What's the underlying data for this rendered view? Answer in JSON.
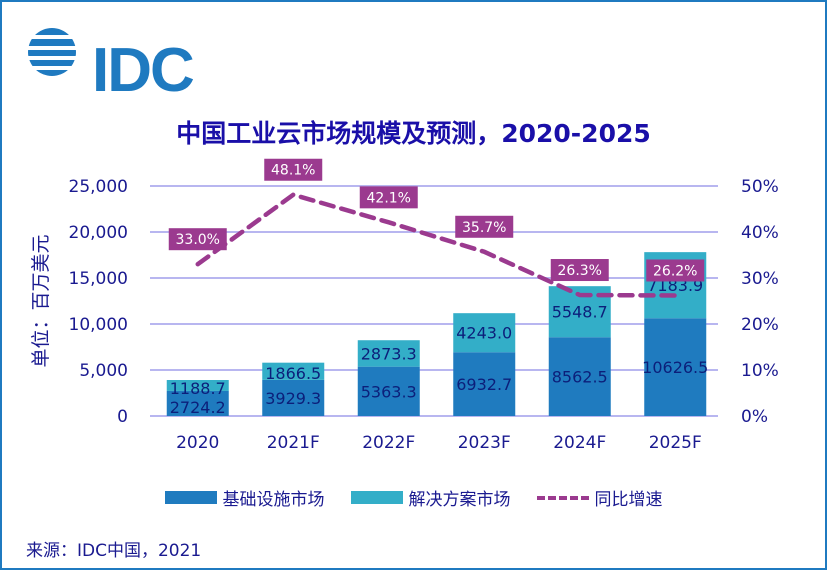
{
  "logo": {
    "text": "IDC"
  },
  "chart_data": {
    "type": "bar+line",
    "title": "中国工业云市场规模及预测，2020-2025",
    "categories": [
      "2020",
      "2021F",
      "2022F",
      "2023F",
      "2024F",
      "2025F"
    ],
    "ylabel": "单位：百万美元",
    "ylim": [
      0,
      25000
    ],
    "yticks": [
      "0",
      "5,000",
      "10,000",
      "15,000",
      "20,000",
      "25,000"
    ],
    "y2lim": [
      0,
      50
    ],
    "y2ticks": [
      "0%",
      "10%",
      "20%",
      "30%",
      "40%",
      "50%"
    ],
    "grid": true,
    "legend_position": "bottom",
    "series": [
      {
        "name": "基础设施市场",
        "kind": "stacked-bar",
        "color": "#1f7bbf",
        "values": [
          2724.2,
          3929.3,
          5363.3,
          6932.7,
          8562.5,
          10626.5
        ],
        "labels": [
          "2724.2",
          "3929.3",
          "5363.3",
          "6932.7",
          "8562.5",
          "10626.5"
        ]
      },
      {
        "name": "解决方案市场",
        "kind": "stacked-bar",
        "color": "#33aec8",
        "values": [
          1188.7,
          1866.5,
          2873.3,
          4243.0,
          5548.7,
          7183.9
        ],
        "labels": [
          "1188.7",
          "1866.5",
          "2873.3",
          "4243.0",
          "5548.7",
          "7183.9"
        ]
      },
      {
        "name": "同比增速",
        "kind": "dashed-line",
        "axis": "right",
        "color": "#9b3a8f",
        "values": [
          33.0,
          48.1,
          42.1,
          35.7,
          26.3,
          26.2
        ],
        "labels": [
          "33.0%",
          "48.1%",
          "42.1%",
          "35.7%",
          "26.3%",
          "26.2%"
        ]
      }
    ]
  },
  "source": "来源：IDC中国，2021"
}
